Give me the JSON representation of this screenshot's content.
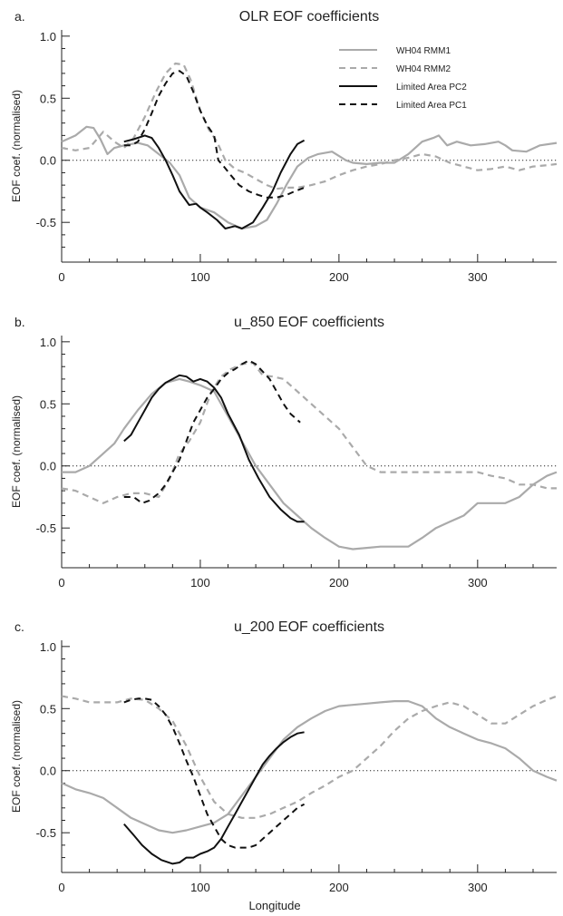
{
  "xlabel": "Longitude",
  "ylabel": "EOF coef. (normalised)",
  "legend": [
    {
      "label": "WH04 RMM1",
      "color": "#aaaaaa",
      "dashed": false
    },
    {
      "label": "WH04 RMM2",
      "color": "#aaaaaa",
      "dashed": true
    },
    {
      "label": "Limited Area PC2",
      "color": "#111111",
      "dashed": false
    },
    {
      "label": "Limited Area PC1",
      "color": "#111111",
      "dashed": true
    }
  ],
  "chart_data": [
    {
      "type": "line",
      "panel": "a.",
      "title": "OLR EOF coefficients",
      "xlim": [
        0,
        357
      ],
      "ylim": [
        -0.82,
        1.05
      ],
      "xticks": [
        "0",
        "100",
        "200",
        "300"
      ],
      "xtick_values": [
        0,
        100,
        200,
        300
      ],
      "yticks": [
        "1.0",
        "0.5",
        "0.0",
        "-0.5"
      ],
      "ytick_values": [
        1.0,
        0.5,
        0.0,
        -0.5
      ],
      "series": [
        {
          "name": "WH04 RMM1",
          "color": "#aaaaaa",
          "dashed": false,
          "x": [
            0,
            10,
            18,
            23,
            28,
            33,
            38,
            45,
            55,
            62,
            70,
            78,
            85,
            92,
            100,
            110,
            120,
            130,
            140,
            148,
            155,
            162,
            170,
            178,
            185,
            195,
            205,
            210,
            220,
            230,
            240,
            250,
            260,
            268,
            272,
            278,
            285,
            295,
            305,
            315,
            320,
            325,
            335,
            345,
            357
          ],
          "y": [
            0.15,
            0.2,
            0.27,
            0.26,
            0.17,
            0.05,
            0.1,
            0.12,
            0.14,
            0.12,
            0.05,
            -0.02,
            -0.12,
            -0.3,
            -0.38,
            -0.42,
            -0.5,
            -0.55,
            -0.53,
            -0.48,
            -0.35,
            -0.2,
            -0.05,
            0.02,
            0.05,
            0.07,
            0.0,
            -0.02,
            -0.03,
            -0.02,
            -0.02,
            0.05,
            0.15,
            0.18,
            0.2,
            0.12,
            0.15,
            0.12,
            0.13,
            0.15,
            0.12,
            0.08,
            0.07,
            0.12,
            0.14
          ]
        },
        {
          "name": "WH04 RMM2",
          "color": "#aaaaaa",
          "dashed": true,
          "x": [
            0,
            10,
            20,
            30,
            38,
            45,
            52,
            60,
            68,
            75,
            82,
            88,
            93,
            100,
            106,
            112,
            118,
            125,
            132,
            140,
            148,
            155,
            162,
            170,
            180,
            190,
            200,
            210,
            220,
            230,
            240,
            250,
            260,
            270,
            280,
            290,
            300,
            310,
            320,
            330,
            340,
            350,
            357
          ],
          "y": [
            0.1,
            0.08,
            0.1,
            0.23,
            0.15,
            0.1,
            0.18,
            0.35,
            0.55,
            0.7,
            0.78,
            0.77,
            0.65,
            0.4,
            0.25,
            0.15,
            0.0,
            -0.07,
            -0.1,
            -0.15,
            -0.2,
            -0.23,
            -0.22,
            -0.22,
            -0.2,
            -0.17,
            -0.12,
            -0.08,
            -0.05,
            -0.03,
            0.0,
            0.02,
            0.05,
            0.03,
            -0.02,
            -0.05,
            -0.08,
            -0.07,
            -0.05,
            -0.08,
            -0.05,
            -0.04,
            -0.03
          ]
        },
        {
          "name": "Limited Area PC2",
          "color": "#111111",
          "dashed": false,
          "x": [
            45,
            52,
            60,
            65,
            70,
            75,
            80,
            85,
            92,
            97,
            100,
            105,
            112,
            118,
            125,
            130,
            138,
            145,
            152,
            158,
            165,
            170,
            175
          ],
          "y": [
            0.15,
            0.17,
            0.2,
            0.18,
            0.1,
            0.0,
            -0.12,
            -0.25,
            -0.36,
            -0.35,
            -0.38,
            -0.42,
            -0.48,
            -0.55,
            -0.53,
            -0.55,
            -0.5,
            -0.38,
            -0.25,
            -0.1,
            0.05,
            0.13,
            0.16
          ]
        },
        {
          "name": "Limited Area PC1",
          "color": "#111111",
          "dashed": true,
          "x": [
            45,
            50,
            55,
            60,
            65,
            70,
            75,
            80,
            85,
            90,
            95,
            100,
            105,
            110,
            113,
            117,
            122,
            128,
            135,
            142,
            148,
            155,
            162,
            168,
            175
          ],
          "y": [
            0.12,
            0.12,
            0.15,
            0.25,
            0.38,
            0.52,
            0.62,
            0.7,
            0.72,
            0.68,
            0.55,
            0.4,
            0.28,
            0.2,
            0.0,
            -0.05,
            -0.12,
            -0.2,
            -0.25,
            -0.28,
            -0.3,
            -0.3,
            -0.28,
            -0.25,
            -0.22
          ]
        }
      ]
    },
    {
      "type": "line",
      "panel": "b.",
      "title": "u_850 EOF coefficients",
      "xlim": [
        0,
        357
      ],
      "ylim": [
        -0.82,
        1.05
      ],
      "xticks": [
        "0",
        "100",
        "200",
        "300"
      ],
      "xtick_values": [
        0,
        100,
        200,
        300
      ],
      "yticks": [
        "1.0",
        "0.5",
        "0.0",
        "-0.5"
      ],
      "ytick_values": [
        1.0,
        0.5,
        0.0,
        -0.5
      ],
      "series": [
        {
          "name": "WH04 RMM1",
          "color": "#aaaaaa",
          "dashed": false,
          "x": [
            0,
            10,
            20,
            30,
            38,
            45,
            55,
            65,
            75,
            85,
            92,
            100,
            110,
            120,
            130,
            140,
            150,
            160,
            170,
            180,
            190,
            200,
            210,
            220,
            230,
            240,
            250,
            260,
            270,
            280,
            290,
            300,
            310,
            320,
            330,
            340,
            350,
            357
          ],
          "y": [
            -0.05,
            -0.05,
            0.0,
            0.1,
            0.18,
            0.3,
            0.45,
            0.58,
            0.67,
            0.7,
            0.68,
            0.65,
            0.6,
            0.4,
            0.2,
            0.0,
            -0.15,
            -0.3,
            -0.4,
            -0.5,
            -0.58,
            -0.65,
            -0.67,
            -0.66,
            -0.65,
            -0.65,
            -0.65,
            -0.58,
            -0.5,
            -0.45,
            -0.4,
            -0.3,
            -0.3,
            -0.3,
            -0.25,
            -0.15,
            -0.08,
            -0.05
          ]
        },
        {
          "name": "WH04 RMM2",
          "color": "#aaaaaa",
          "dashed": true,
          "x": [
            0,
            10,
            20,
            30,
            40,
            50,
            60,
            70,
            78,
            85,
            92,
            100,
            108,
            115,
            122,
            130,
            138,
            145,
            152,
            160,
            170,
            180,
            190,
            200,
            210,
            220,
            230,
            240,
            250,
            260,
            270,
            280,
            290,
            300,
            310,
            320,
            330,
            340,
            350,
            357
          ],
          "y": [
            -0.18,
            -0.2,
            -0.25,
            -0.3,
            -0.25,
            -0.22,
            -0.22,
            -0.25,
            -0.1,
            0.1,
            0.2,
            0.35,
            0.6,
            0.72,
            0.78,
            0.82,
            0.83,
            0.73,
            0.72,
            0.7,
            0.6,
            0.5,
            0.4,
            0.3,
            0.15,
            0.0,
            -0.05,
            -0.05,
            -0.05,
            -0.05,
            -0.05,
            -0.05,
            -0.05,
            -0.05,
            -0.08,
            -0.1,
            -0.15,
            -0.15,
            -0.18,
            -0.18
          ]
        },
        {
          "name": "Limited Area PC2",
          "color": "#111111",
          "dashed": false,
          "x": [
            45,
            50,
            55,
            60,
            65,
            70,
            75,
            80,
            85,
            90,
            95,
            100,
            105,
            110,
            115,
            120,
            128,
            135,
            142,
            150,
            158,
            165,
            170,
            175
          ],
          "y": [
            0.2,
            0.25,
            0.35,
            0.45,
            0.55,
            0.62,
            0.67,
            0.7,
            0.73,
            0.72,
            0.68,
            0.7,
            0.68,
            0.63,
            0.55,
            0.42,
            0.25,
            0.05,
            -0.1,
            -0.25,
            -0.35,
            -0.42,
            -0.45,
            -0.45
          ]
        },
        {
          "name": "Limited Area PC1",
          "color": "#111111",
          "dashed": true,
          "x": [
            45,
            52,
            58,
            63,
            70,
            75,
            80,
            85,
            90,
            95,
            100,
            105,
            110,
            115,
            120,
            125,
            130,
            135,
            140,
            145,
            150,
            155,
            160,
            165,
            172
          ],
          "y": [
            -0.25,
            -0.25,
            -0.3,
            -0.28,
            -0.22,
            -0.15,
            -0.05,
            0.05,
            0.2,
            0.35,
            0.45,
            0.55,
            0.62,
            0.7,
            0.75,
            0.78,
            0.82,
            0.85,
            0.82,
            0.76,
            0.7,
            0.6,
            0.5,
            0.42,
            0.35
          ]
        }
      ]
    },
    {
      "type": "line",
      "panel": "c.",
      "title": "u_200 EOF coefficients",
      "xlim": [
        0,
        357
      ],
      "ylim": [
        -0.82,
        1.05
      ],
      "xticks": [
        "0",
        "100",
        "200",
        "300"
      ],
      "xtick_values": [
        0,
        100,
        200,
        300
      ],
      "yticks": [
        "1.0",
        "0.5",
        "0.0",
        "-0.5"
      ],
      "ytick_values": [
        1.0,
        0.5,
        0.0,
        -0.5
      ],
      "series": [
        {
          "name": "WH04 RMM1",
          "color": "#aaaaaa",
          "dashed": false,
          "x": [
            0,
            10,
            20,
            30,
            40,
            50,
            60,
            70,
            80,
            90,
            100,
            110,
            120,
            130,
            140,
            150,
            160,
            170,
            180,
            190,
            200,
            210,
            220,
            230,
            240,
            250,
            260,
            270,
            280,
            290,
            300,
            310,
            320,
            330,
            340,
            350,
            357
          ],
          "y": [
            -0.1,
            -0.15,
            -0.18,
            -0.22,
            -0.3,
            -0.38,
            -0.43,
            -0.48,
            -0.5,
            -0.48,
            -0.45,
            -0.42,
            -0.35,
            -0.2,
            -0.05,
            0.1,
            0.25,
            0.35,
            0.42,
            0.48,
            0.52,
            0.53,
            0.54,
            0.55,
            0.56,
            0.56,
            0.52,
            0.42,
            0.35,
            0.3,
            0.25,
            0.22,
            0.18,
            0.1,
            0.0,
            -0.05,
            -0.08
          ]
        },
        {
          "name": "WH04 RMM2",
          "color": "#aaaaaa",
          "dashed": true,
          "x": [
            0,
            10,
            20,
            30,
            40,
            50,
            60,
            70,
            80,
            90,
            100,
            110,
            120,
            130,
            140,
            150,
            160,
            170,
            180,
            190,
            200,
            210,
            220,
            230,
            240,
            250,
            260,
            270,
            280,
            290,
            300,
            310,
            320,
            330,
            340,
            350,
            357
          ],
          "y": [
            0.6,
            0.58,
            0.55,
            0.55,
            0.55,
            0.58,
            0.57,
            0.5,
            0.4,
            0.2,
            -0.05,
            -0.25,
            -0.35,
            -0.38,
            -0.38,
            -0.35,
            -0.3,
            -0.25,
            -0.18,
            -0.12,
            -0.05,
            0.0,
            0.1,
            0.2,
            0.32,
            0.42,
            0.48,
            0.52,
            0.55,
            0.52,
            0.45,
            0.38,
            0.38,
            0.45,
            0.52,
            0.57,
            0.6
          ]
        },
        {
          "name": "Limited Area PC2",
          "color": "#111111",
          "dashed": false,
          "x": [
            45,
            52,
            58,
            65,
            72,
            80,
            85,
            90,
            95,
            100,
            105,
            110,
            115,
            120,
            125,
            130,
            135,
            140,
            145,
            150,
            155,
            160,
            165,
            170,
            175
          ],
          "y": [
            -0.43,
            -0.52,
            -0.6,
            -0.67,
            -0.72,
            -0.75,
            -0.74,
            -0.7,
            -0.7,
            -0.67,
            -0.65,
            -0.62,
            -0.55,
            -0.45,
            -0.35,
            -0.25,
            -0.15,
            -0.05,
            0.05,
            0.12,
            0.18,
            0.23,
            0.27,
            0.3,
            0.31
          ]
        },
        {
          "name": "Limited Area PC1",
          "color": "#111111",
          "dashed": true,
          "x": [
            45,
            50,
            55,
            60,
            65,
            70,
            75,
            80,
            85,
            90,
            95,
            100,
            105,
            110,
            115,
            120,
            125,
            130,
            135,
            140,
            145,
            150,
            155,
            160,
            165,
            170,
            175
          ],
          "y": [
            0.55,
            0.57,
            0.58,
            0.58,
            0.57,
            0.52,
            0.45,
            0.35,
            0.22,
            0.08,
            -0.05,
            -0.2,
            -0.35,
            -0.45,
            -0.55,
            -0.6,
            -0.62,
            -0.62,
            -0.62,
            -0.6,
            -0.55,
            -0.5,
            -0.45,
            -0.4,
            -0.35,
            -0.3,
            -0.27
          ]
        }
      ]
    }
  ]
}
